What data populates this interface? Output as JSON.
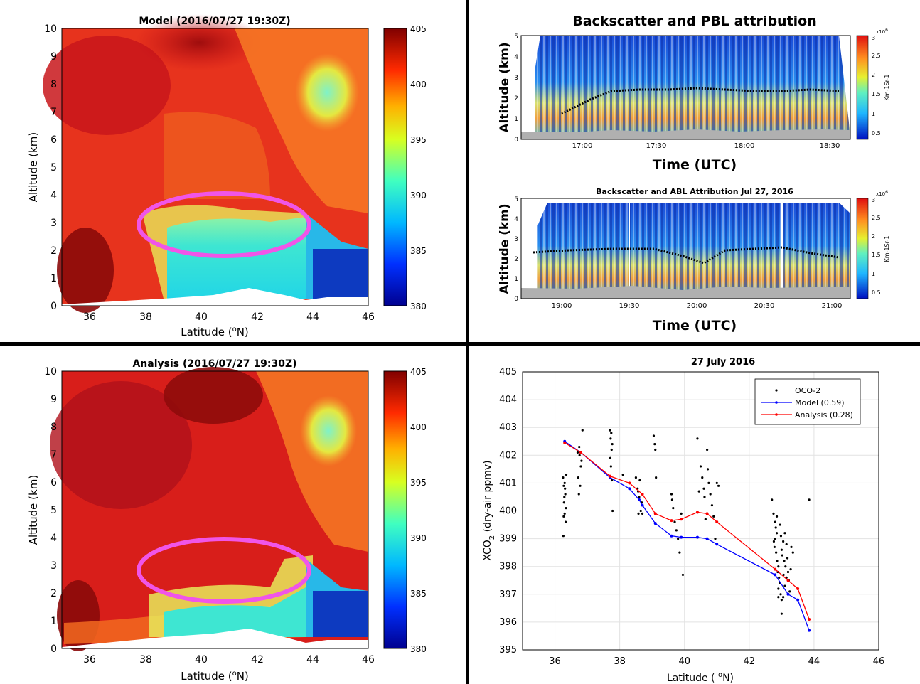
{
  "chart_data": [
    {
      "type": "heatmap",
      "title": "Model (2016/07/27 19:30Z)",
      "xlabel": "Latitude (",
      "xlabel_sup": "o",
      "xlabel_tail": "N)",
      "ylabel": "Altitude (km)",
      "xlim": [
        35,
        46
      ],
      "ylim": [
        0,
        10
      ],
      "xticks": [
        "36",
        "38",
        "40",
        "42",
        "44",
        "46"
      ],
      "yticks": [
        "0",
        "1",
        "2",
        "3",
        "4",
        "5",
        "6",
        "7",
        "8",
        "9",
        "10"
      ],
      "colorbar": {
        "range": [
          380,
          405
        ],
        "ticks": [
          "380",
          "385",
          "390",
          "395",
          "400",
          "405"
        ]
      },
      "annotation": "magenta-ellipse",
      "dominant_colors": {
        "high": "#c8101a",
        "mid": "#f36a1e",
        "low": "#27d9d2",
        "min": "#0a2f9e"
      }
    },
    {
      "type": "heatmap",
      "title": "Analysis (2016/07/27 19:30Z)",
      "xlabel": "Latitude (",
      "xlabel_sup": "o",
      "xlabel_tail": "N)",
      "ylabel": "Altitude (km)",
      "xlim": [
        35,
        46
      ],
      "ylim": [
        0,
        10
      ],
      "xticks": [
        "36",
        "38",
        "40",
        "42",
        "44",
        "46"
      ],
      "yticks": [
        "0",
        "1",
        "2",
        "3",
        "4",
        "5",
        "6",
        "7",
        "8",
        "9",
        "10"
      ],
      "colorbar": {
        "range": [
          380,
          405
        ],
        "ticks": [
          "380",
          "385",
          "390",
          "395",
          "400",
          "405"
        ]
      },
      "annotation": "magenta-ellipse"
    },
    {
      "type": "heatmap",
      "title": "Backscatter and PBL attribution",
      "xlabel": "Time (UTC)",
      "ylabel": "Altitude (km)",
      "ylim": [
        0,
        5
      ],
      "xticks": [
        "17:00",
        "17:30",
        "18:00",
        "18:30"
      ],
      "yticks": [
        "0",
        "1",
        "2",
        "3",
        "4",
        "5"
      ],
      "colorbar": {
        "ticks": [
          "0.5",
          "1",
          "1.5",
          "2",
          "2.5",
          "3"
        ],
        "exponent": "x10",
        "exponent_sup": "6",
        "label": "Km-1Sr-1"
      }
    },
    {
      "type": "heatmap",
      "title": "Backscatter and ABL Attribution Jul 27, 2016",
      "xlabel": "Time (UTC)",
      "ylabel": "Altitude (km)",
      "ylim": [
        0,
        5
      ],
      "xticks": [
        "19:00",
        "19:30",
        "20:00",
        "20:30",
        "21:00"
      ],
      "yticks": [
        "0",
        "1",
        "2",
        "3",
        "4",
        "5"
      ],
      "colorbar": {
        "ticks": [
          "0.5",
          "1",
          "1.5",
          "2",
          "2.5",
          "3"
        ],
        "exponent": "x10",
        "exponent_sup": "6",
        "label": "Km-1Sr-1"
      }
    },
    {
      "type": "line",
      "title": "27 July 2016",
      "xlabel": "Latitude (  ",
      "xlabel_sup": "o",
      "xlabel_tail": "N)",
      "ylabel": "XCO",
      "ylabel_sub": "2",
      "ylabel_tail": " (dry-air ppmv)",
      "xlim": [
        35,
        46
      ],
      "ylim": [
        395,
        405
      ],
      "xticks": [
        "36",
        "38",
        "40",
        "42",
        "44",
        "46"
      ],
      "yticks": [
        "395",
        "396",
        "397",
        "398",
        "399",
        "400",
        "401",
        "402",
        "403",
        "404",
        "405"
      ],
      "grid": true,
      "legend_position": "top-right",
      "series": [
        {
          "name": "Model (0.59)",
          "color": "#0000ff",
          "x": [
            36.3,
            36.8,
            37.7,
            38.3,
            38.6,
            38.7,
            39.1,
            39.6,
            39.9,
            40.4,
            40.7,
            41.0,
            42.8,
            43.2,
            43.5,
            43.85
          ],
          "y": [
            402.5,
            402.1,
            401.2,
            400.8,
            400.4,
            400.2,
            399.55,
            399.1,
            399.05,
            399.05,
            399.0,
            398.8,
            397.7,
            397.0,
            396.8,
            395.7
          ]
        },
        {
          "name": "Analysis (0.28)",
          "color": "#ff0000",
          "x": [
            36.3,
            36.8,
            37.7,
            38.3,
            38.7,
            39.1,
            39.6,
            39.9,
            40.4,
            40.7,
            41.0,
            42.8,
            43.2,
            43.5,
            43.85
          ],
          "y": [
            402.45,
            402.1,
            401.25,
            401.0,
            400.6,
            399.9,
            399.65,
            399.7,
            399.95,
            399.9,
            399.6,
            397.9,
            397.5,
            397.2,
            396.1
          ]
        }
      ],
      "scatter_series": {
        "name": "OCO-2",
        "color": "#000000",
        "points": [
          [
            36.25,
            401.2
          ],
          [
            36.27,
            400.9
          ],
          [
            36.3,
            401.0
          ],
          [
            36.32,
            400.6
          ],
          [
            36.28,
            400.3
          ],
          [
            36.3,
            399.9
          ],
          [
            36.33,
            399.6
          ],
          [
            36.26,
            399.1
          ],
          [
            36.35,
            401.3
          ],
          [
            36.31,
            400.8
          ],
          [
            36.29,
            400.5
          ],
          [
            36.34,
            400.1
          ],
          [
            36.27,
            399.8
          ],
          [
            36.7,
            402.1
          ],
          [
            36.75,
            402.3
          ],
          [
            36.8,
            401.6
          ],
          [
            36.72,
            401.2
          ],
          [
            36.78,
            400.9
          ],
          [
            36.85,
            402.9
          ],
          [
            36.74,
            400.6
          ],
          [
            36.82,
            401.8
          ],
          [
            36.76,
            402.0
          ],
          [
            37.7,
            402.9
          ],
          [
            37.72,
            402.6
          ],
          [
            37.75,
            402.2
          ],
          [
            37.71,
            401.9
          ],
          [
            37.73,
            401.6
          ],
          [
            37.76,
            401.1
          ],
          [
            37.78,
            400.0
          ],
          [
            37.74,
            402.8
          ],
          [
            37.77,
            402.4
          ],
          [
            38.1,
            401.3
          ],
          [
            38.5,
            401.2
          ],
          [
            38.55,
            400.8
          ],
          [
            38.6,
            400.5
          ],
          [
            38.65,
            400.0
          ],
          [
            38.58,
            399.9
          ],
          [
            38.62,
            401.1
          ],
          [
            38.68,
            400.3
          ],
          [
            38.7,
            399.9
          ],
          [
            38.57,
            400.7
          ],
          [
            39.05,
            402.7
          ],
          [
            39.08,
            402.4
          ],
          [
            39.1,
            402.2
          ],
          [
            39.12,
            401.2
          ],
          [
            39.6,
            400.6
          ],
          [
            39.62,
            400.4
          ],
          [
            39.65,
            400.1
          ],
          [
            39.7,
            399.6
          ],
          [
            39.75,
            399.3
          ],
          [
            39.8,
            399.0
          ],
          [
            39.85,
            398.5
          ],
          [
            39.9,
            399.9
          ],
          [
            39.95,
            397.7
          ],
          [
            40.4,
            402.6
          ],
          [
            40.5,
            401.6
          ],
          [
            40.55,
            401.2
          ],
          [
            40.6,
            400.8
          ],
          [
            40.62,
            400.5
          ],
          [
            40.7,
            402.2
          ],
          [
            40.72,
            401.5
          ],
          [
            40.75,
            401.0
          ],
          [
            40.8,
            400.6
          ],
          [
            40.85,
            400.2
          ],
          [
            40.9,
            399.8
          ],
          [
            40.95,
            399.0
          ],
          [
            41.0,
            401.0
          ],
          [
            41.05,
            400.9
          ],
          [
            40.45,
            400.7
          ],
          [
            40.65,
            399.7
          ],
          [
            42.7,
            400.4
          ],
          [
            42.75,
            399.9
          ],
          [
            42.8,
            399.6
          ],
          [
            42.82,
            399.4
          ],
          [
            42.85,
            399.2
          ],
          [
            42.8,
            399.0
          ],
          [
            42.78,
            398.7
          ],
          [
            42.83,
            398.5
          ],
          [
            42.86,
            398.2
          ],
          [
            42.9,
            398.0
          ],
          [
            42.88,
            397.8
          ],
          [
            42.92,
            397.6
          ],
          [
            42.95,
            397.4
          ],
          [
            42.9,
            397.2
          ],
          [
            42.97,
            397.0
          ],
          [
            43.0,
            396.8
          ],
          [
            43.05,
            396.9
          ],
          [
            43.1,
            397.3
          ],
          [
            43.15,
            397.6
          ],
          [
            43.2,
            397.8
          ],
          [
            43.0,
            398.6
          ],
          [
            43.02,
            398.4
          ],
          [
            43.08,
            398.2
          ],
          [
            43.12,
            398.0
          ],
          [
            43.18,
            398.3
          ],
          [
            43.22,
            397.5
          ],
          [
            43.25,
            397.1
          ],
          [
            43.3,
            398.7
          ],
          [
            43.35,
            398.5
          ],
          [
            43.0,
            396.3
          ],
          [
            42.95,
            399.5
          ],
          [
            42.85,
            399.8
          ],
          [
            42.76,
            398.9
          ],
          [
            43.05,
            398.9
          ],
          [
            43.1,
            399.2
          ],
          [
            43.15,
            398.8
          ],
          [
            42.9,
            396.9
          ],
          [
            43.28,
            397.9
          ],
          [
            42.98,
            399.1
          ],
          [
            43.06,
            397.7
          ],
          [
            43.85,
            400.4
          ]
        ]
      }
    }
  ]
}
